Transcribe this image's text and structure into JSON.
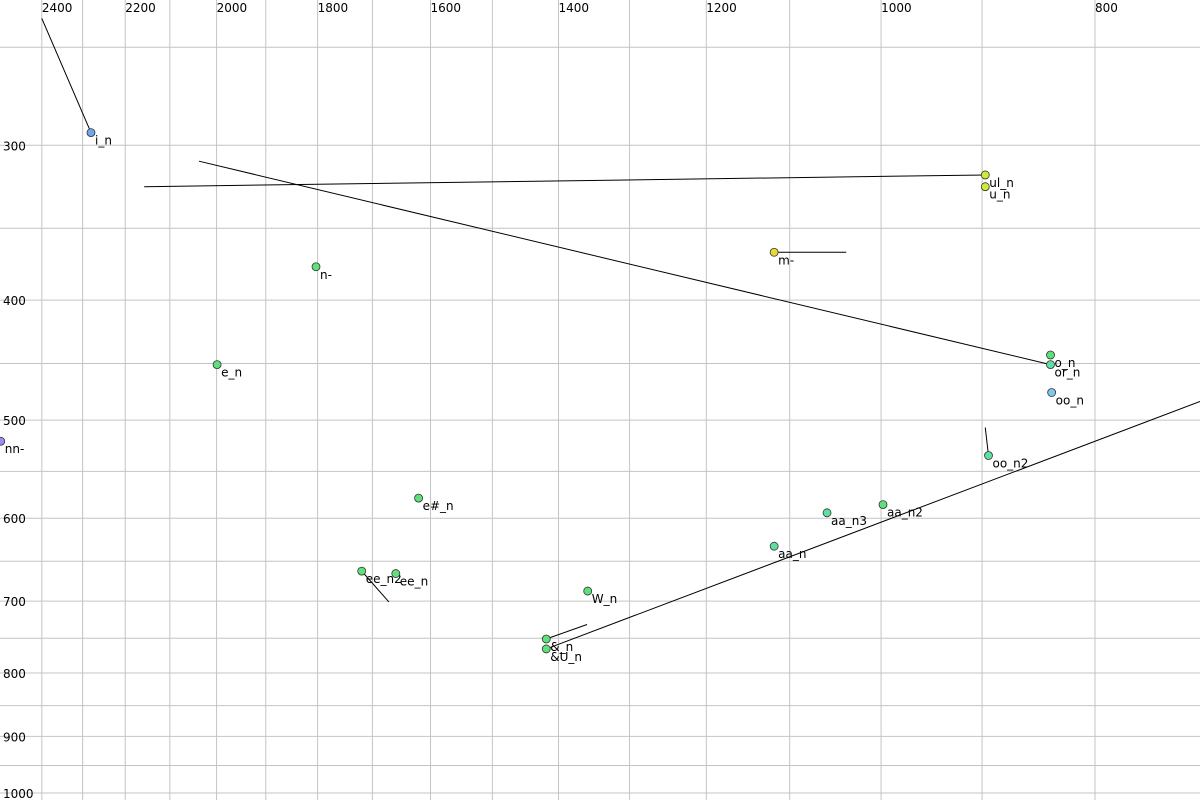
{
  "chart_data": {
    "type": "scatter",
    "xscale": "log",
    "yscale": "log",
    "x_reversed": true,
    "grid": true,
    "xlim": [
      2507,
      717
    ],
    "ylim": [
      229,
      1013
    ],
    "xticks": [
      2400,
      2200,
      2000,
      1800,
      1600,
      1400,
      1200,
      1000,
      800
    ],
    "xminor": [
      2300,
      2100,
      1900,
      1700,
      1500,
      1300,
      1100,
      900,
      700
    ],
    "yticks": [
      300,
      400,
      500,
      600,
      700,
      800,
      900,
      1000
    ],
    "yminor": [
      250,
      350,
      450,
      550,
      650,
      750,
      850,
      950
    ],
    "points": [
      {
        "label": "i_n",
        "x": 2280,
        "y": 293,
        "color": "#6fa8e8",
        "end_x": 2400,
        "end_y": 237
      },
      {
        "label": "ul_n",
        "x": 897,
        "y": 317,
        "color": "#cfe83a",
        "end_x": 2157,
        "end_y": 324
      },
      {
        "label": "u_n",
        "x": 897,
        "y": 324,
        "color": "#cfe83a"
      },
      {
        "label": "m-",
        "x": 1118,
        "y": 366,
        "color": "#e8d83a",
        "end_x": 1037,
        "end_y": 366
      },
      {
        "label": "n-",
        "x": 1803,
        "y": 376,
        "color": "#5ee07a"
      },
      {
        "label": "e_n",
        "x": 1999,
        "y": 451,
        "color": "#5ee07a"
      },
      {
        "label": "o_n",
        "x": 838,
        "y": 443,
        "color": "#5ee07a"
      },
      {
        "label": "or_n",
        "x": 838,
        "y": 451,
        "color": "#5ee0a0",
        "end_x": 2037,
        "end_y": 309
      },
      {
        "label": "oo_n",
        "x": 837,
        "y": 475,
        "color": "#7ec8f0"
      },
      {
        "label": "nn-",
        "x": 2505,
        "y": 520,
        "color": "#9a8cf0"
      },
      {
        "label": "oo_n2",
        "x": 894,
        "y": 534,
        "color": "#5ee0a0",
        "end_x": 897,
        "end_y": 507
      },
      {
        "label": "e#_n",
        "x": 1620,
        "y": 578,
        "color": "#5ee07a"
      },
      {
        "label": "aa_n3",
        "x": 1058,
        "y": 594,
        "color": "#5ee0a0"
      },
      {
        "label": "aa_n2",
        "x": 998,
        "y": 585,
        "color": "#5ee07a"
      },
      {
        "label": "aa_n",
        "x": 1118,
        "y": 632,
        "color": "#5ee0a0"
      },
      {
        "label": "ee_n2",
        "x": 1719,
        "y": 662,
        "color": "#5ee07a",
        "end_x": 1671,
        "end_y": 701
      },
      {
        "label": "ee_n",
        "x": 1659,
        "y": 665,
        "color": "#5ee07a"
      },
      {
        "label": "W_n",
        "x": 1358,
        "y": 687,
        "color": "#5ee07a"
      },
      {
        "label": "&_n",
        "x": 1418,
        "y": 751,
        "color": "#5ee07a",
        "end_x": 1359,
        "end_y": 731
      },
      {
        "label": "&U_n",
        "x": 1418,
        "y": 765,
        "color": "#5ee07a",
        "end_x": 717,
        "end_y": 483
      }
    ]
  }
}
